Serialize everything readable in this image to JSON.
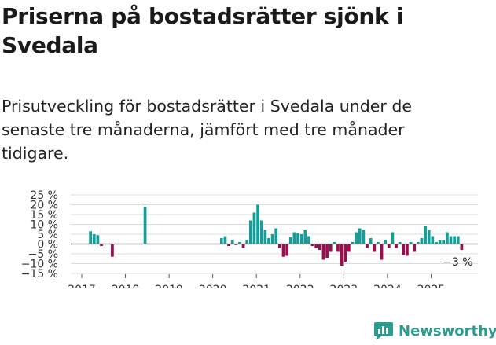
{
  "title": "Priserna på bostadsrätter sjönk i Svedala",
  "subtitle": "Prisutveckling för bostadsrätter i Svedala under de senaste tre månaderna, jämfört med tre månader tidigare.",
  "brand": {
    "name": "Newsworthy",
    "icon": "newsworthy-logo-icon"
  },
  "colors": {
    "positive": "#149e9a",
    "negative": "#9e0b4e",
    "grid": "#dcdcdc",
    "zero": "#333333",
    "brand": "#2a9d8f"
  },
  "chart_data": {
    "type": "bar",
    "title": "",
    "xlabel": "",
    "ylabel": "",
    "ylim": [
      -15,
      25
    ],
    "y_ticks": [
      25,
      20,
      15,
      10,
      5,
      0,
      -5,
      -10,
      -15
    ],
    "y_tick_labels": [
      "25 %",
      "20 %",
      "15 %",
      "10 %",
      "5 %",
      "0 %",
      "−5 %",
      "−10 %",
      "−15 %"
    ],
    "x_ticks": [
      "2017",
      "2018",
      "2019",
      "2020",
      "2021",
      "2022",
      "2023",
      "2024",
      "2025"
    ],
    "grid": true,
    "start_month": "2017-01",
    "unit": "month",
    "values": [
      null,
      null,
      6.5,
      5,
      4.5,
      -1,
      null,
      null,
      -6.5,
      null,
      null,
      null,
      null,
      null,
      null,
      null,
      null,
      19,
      null,
      null,
      null,
      null,
      null,
      null,
      null,
      null,
      null,
      null,
      null,
      null,
      null,
      null,
      null,
      null,
      null,
      null,
      null,
      null,
      3,
      4,
      -1,
      2,
      -0.5,
      1,
      -2,
      2,
      12,
      16,
      20,
      12,
      7,
      3,
      5,
      8,
      -2,
      -6.5,
      -6,
      3.5,
      6,
      5.5,
      5,
      7,
      4,
      -1,
      -2,
      -3,
      -8,
      -7,
      -4,
      1,
      -4,
      -11,
      -9,
      -4,
      1,
      6,
      8,
      7,
      -2,
      3,
      -4,
      1,
      -8,
      2,
      -2,
      6,
      -2,
      1,
      -5.5,
      -6,
      1,
      -4,
      1,
      3,
      9,
      7,
      4,
      1,
      2,
      2,
      6,
      4,
      4,
      4,
      -3
    ],
    "annotation": "−3 %"
  }
}
